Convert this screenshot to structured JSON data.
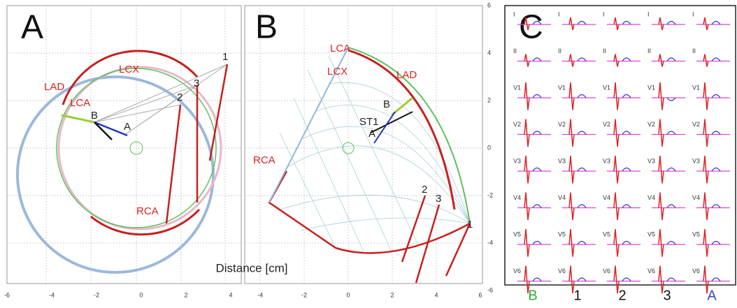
{
  "panels": [
    {
      "label": "A",
      "annotations": [
        "LAD",
        "LCA",
        "LCX",
        "B",
        "A",
        "RCA",
        "1",
        "2",
        "3"
      ],
      "x_ticks": [
        "-6",
        "-4",
        "-2",
        "0",
        "2",
        "4"
      ]
    },
    {
      "label": "B",
      "annotations": [
        "LCA",
        "LCX",
        "LAD",
        "B",
        "ST1",
        "A",
        "RCA",
        "2",
        "3",
        "1"
      ],
      "x_ticks": [
        "-4",
        "-2",
        "0",
        "2",
        "4",
        "6"
      ]
    },
    {
      "label": "C",
      "leads": [
        "I",
        "II",
        "V1",
        "V2",
        "V3",
        "V4",
        "V5",
        "V6"
      ],
      "columns": [
        "B",
        "1",
        "2",
        "3",
        "A"
      ]
    }
  ],
  "y_ticks": [
    "6",
    "4",
    "2",
    "0",
    "-2",
    "-4",
    "-6"
  ],
  "axis_label": "Distance [cm]"
}
